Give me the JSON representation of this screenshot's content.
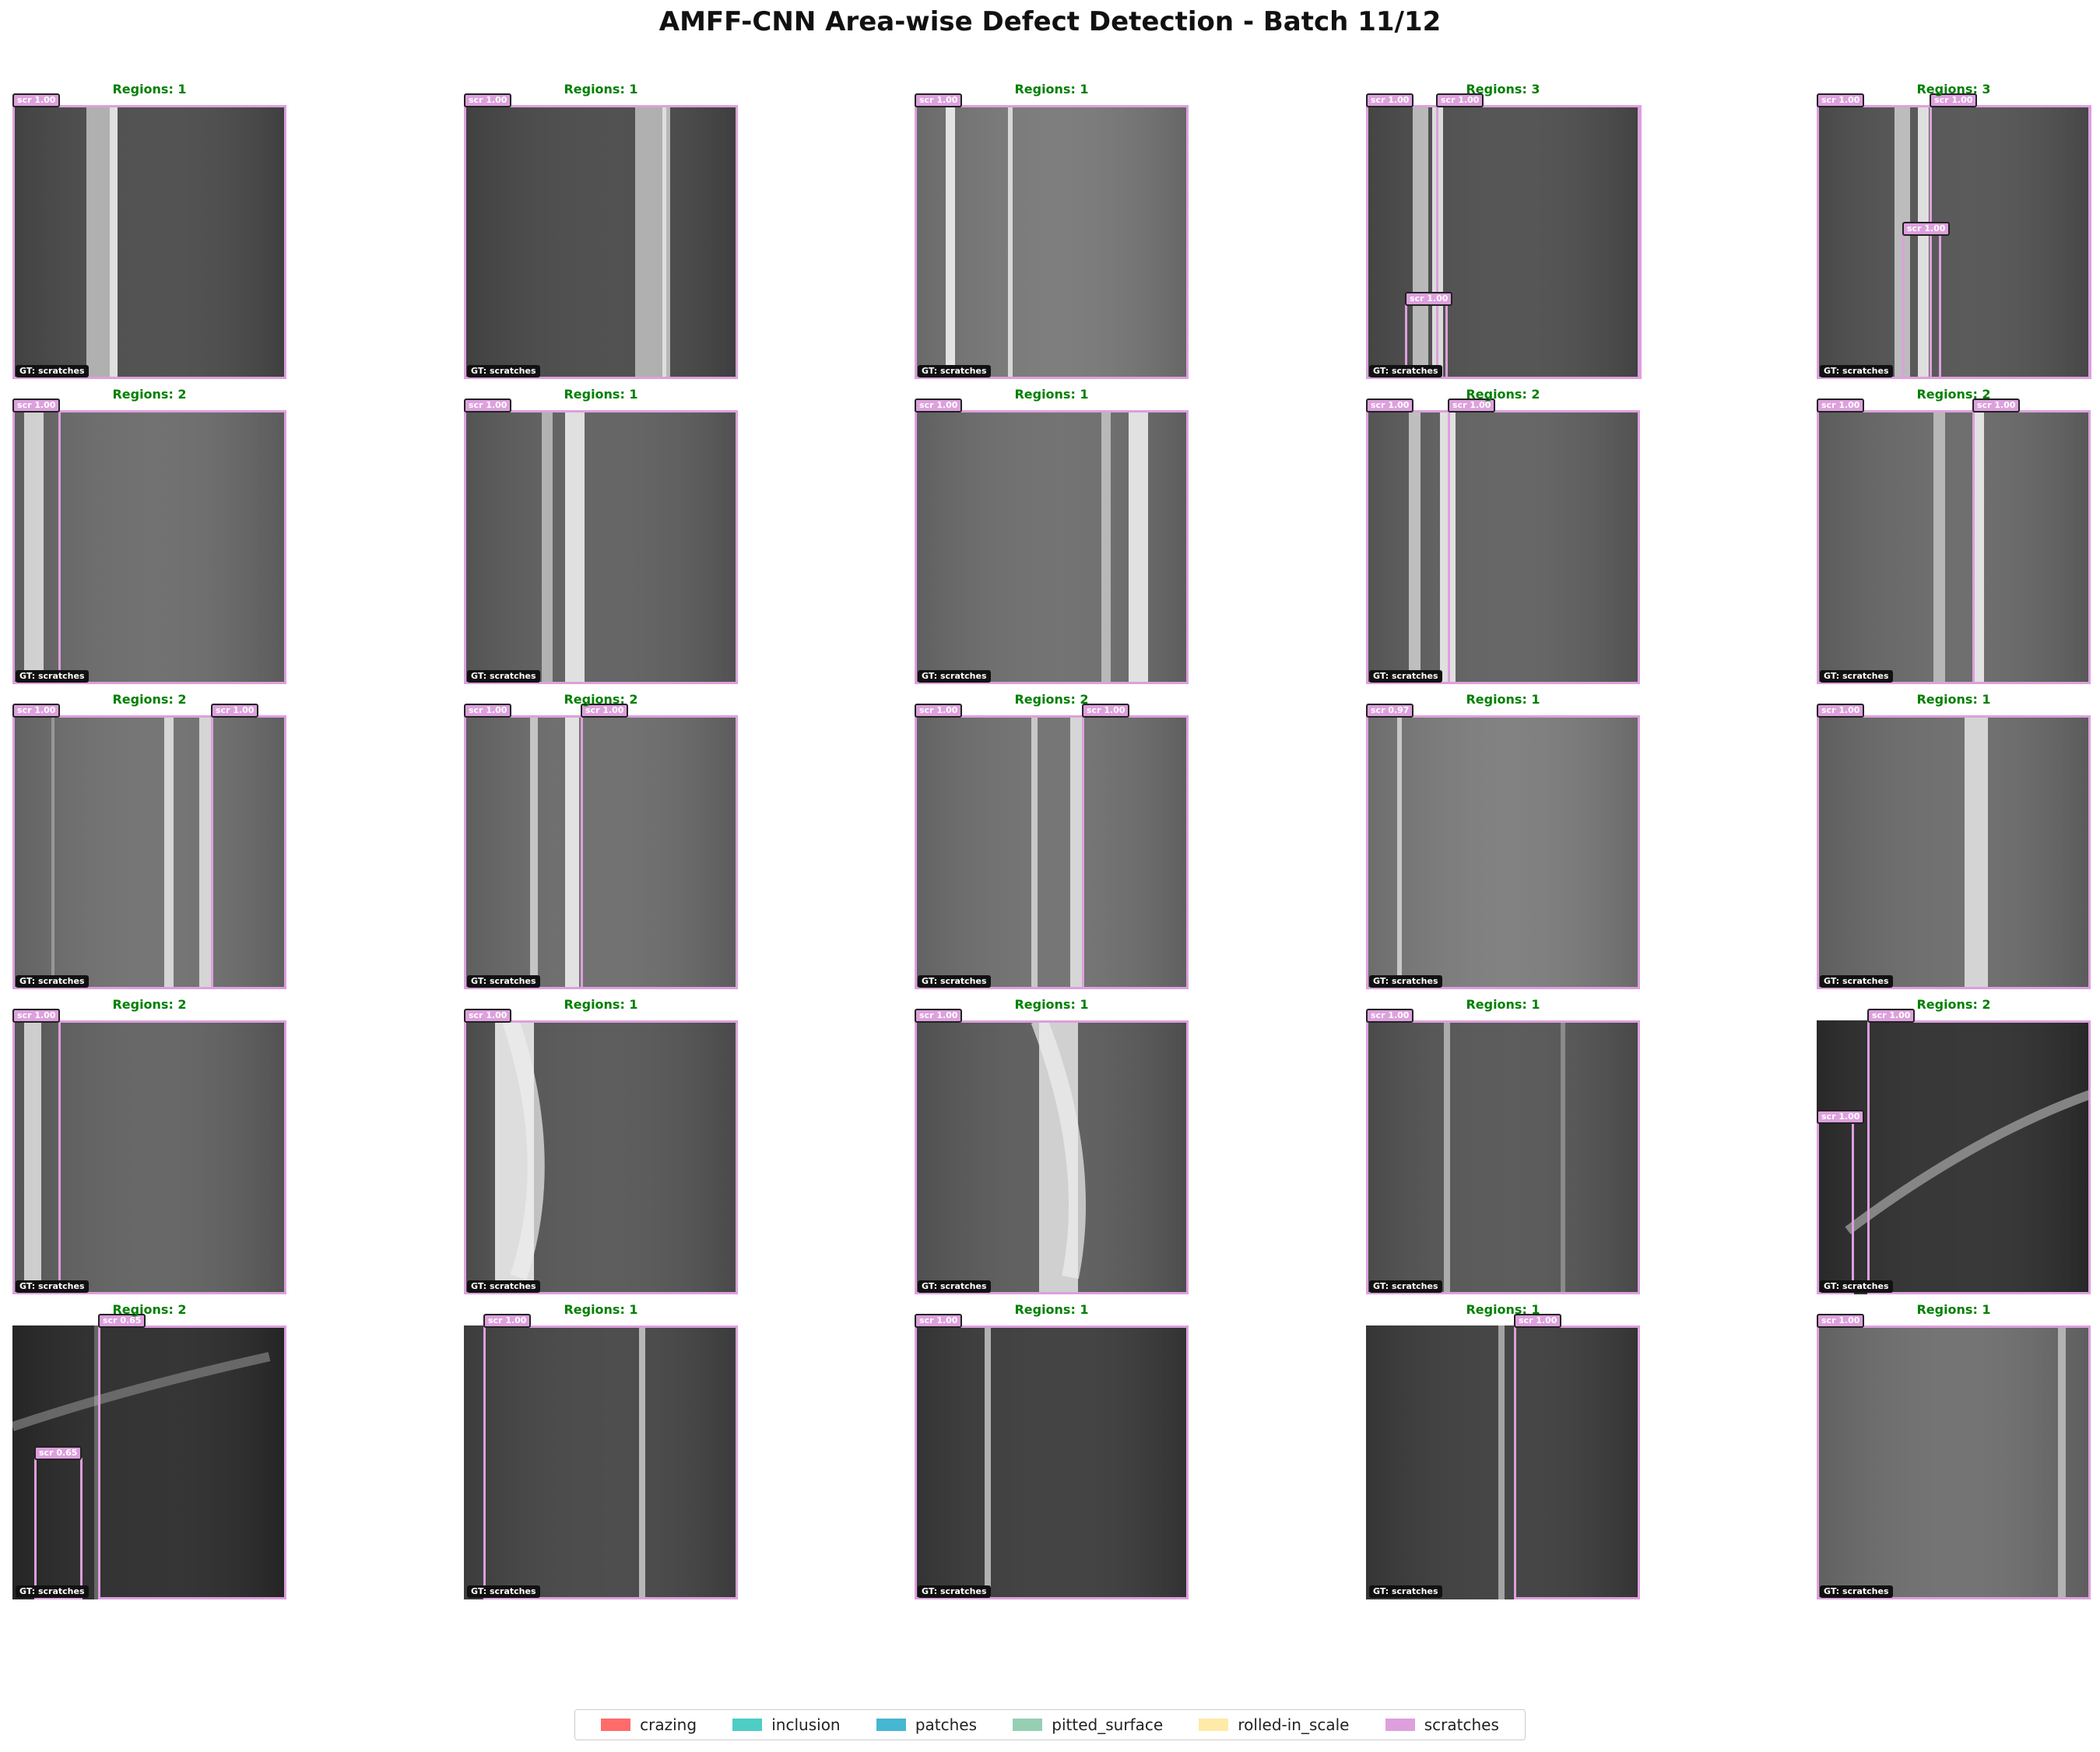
{
  "title": "AMFF-CNN Area-wise Defect Detection - Batch 11/12",
  "legend": [
    {
      "label": "crazing",
      "color": "#ff6b6b"
    },
    {
      "label": "inclusion",
      "color": "#4ecdc4"
    },
    {
      "label": "patches",
      "color": "#45b7d1"
    },
    {
      "label": "pitted_surface",
      "color": "#96ceb4"
    },
    {
      "label": "rolled-in_scale",
      "color": "#ffeaa7"
    },
    {
      "label": "scratches",
      "color": "#dda0dd"
    }
  ],
  "gt_label": "GT: scratches",
  "panels": [
    {
      "regions": "Regions: 1",
      "dets": [
        "scr 1.00"
      ]
    },
    {
      "regions": "Regions: 1",
      "dets": [
        "scr 1.00"
      ]
    },
    {
      "regions": "Regions: 1",
      "dets": [
        "scr 1.00"
      ]
    },
    {
      "regions": "Regions: 3",
      "dets": [
        "scr 1.00",
        "scr 1.00",
        "scr 1.00"
      ]
    },
    {
      "regions": "Regions: 3",
      "dets": [
        "scr 1.00",
        "scr 1.00",
        "scr 1.00"
      ]
    },
    {
      "regions": "Regions: 2",
      "dets": [
        "scr 1.00",
        "scr 1.00"
      ]
    },
    {
      "regions": "Regions: 1",
      "dets": [
        "scr 1.00"
      ]
    },
    {
      "regions": "Regions: 1",
      "dets": [
        "scr 1.00"
      ]
    },
    {
      "regions": "Regions: 2",
      "dets": [
        "scr 1.00",
        "scr 1.00"
      ]
    },
    {
      "regions": "Regions: 2",
      "dets": [
        "scr 1.00",
        "scr 1.00"
      ]
    },
    {
      "regions": "Regions: 2",
      "dets": [
        "scr 1.00",
        "scr 1.00"
      ]
    },
    {
      "regions": "Regions: 2",
      "dets": [
        "scr 1.00",
        "scr 1.00"
      ]
    },
    {
      "regions": "Regions: 2",
      "dets": [
        "scr 1.00",
        "scr 1.00"
      ]
    },
    {
      "regions": "Regions: 1",
      "dets": [
        "scr 0.97"
      ]
    },
    {
      "regions": "Regions: 1",
      "dets": [
        "scr 1.00"
      ]
    },
    {
      "regions": "Regions: 2",
      "dets": [
        "scr 1.00",
        "scr 1.00"
      ]
    },
    {
      "regions": "Regions: 1",
      "dets": [
        "scr 1.00"
      ]
    },
    {
      "regions": "Regions: 1",
      "dets": [
        "scr 1.00"
      ]
    },
    {
      "regions": "Regions: 1",
      "dets": [
        "scr 1.00"
      ]
    },
    {
      "regions": "Regions: 2",
      "dets": [
        "scr 1.00",
        "scr 1.00"
      ]
    },
    {
      "regions": "Regions: 2",
      "dets": [
        "scr 0.65",
        "scr 0.65"
      ]
    },
    {
      "regions": "Regions: 1",
      "dets": [
        "scr 1.00"
      ]
    },
    {
      "regions": "Regions: 1",
      "dets": [
        "scr 1.00"
      ]
    },
    {
      "regions": "Regions: 1",
      "dets": [
        "scr 1.00"
      ]
    },
    {
      "regions": "Regions: 1",
      "dets": [
        "scr 1.00"
      ]
    }
  ]
}
